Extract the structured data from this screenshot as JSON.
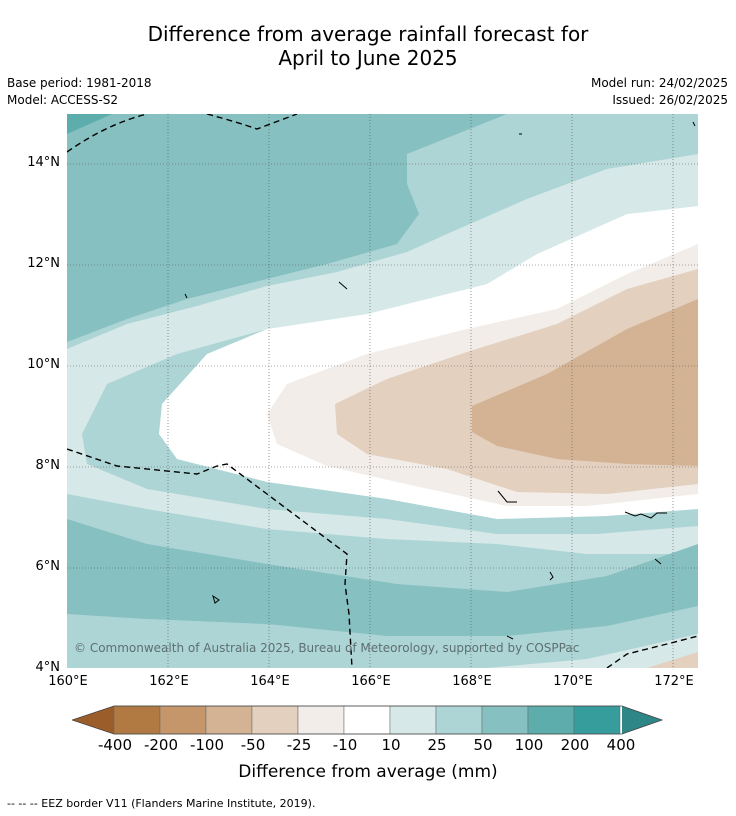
{
  "title": {
    "line1": "Difference from average rainfall forecast for",
    "line2": "April to June 2025"
  },
  "meta": {
    "base_period": "Base period: 1981-2018",
    "model": "Model: ACCESS-S2",
    "model_run": "Model run: 24/02/2025",
    "issued": "Issued: 26/02/2025"
  },
  "map": {
    "lat_labels": [
      "14°N",
      "12°N",
      "10°N",
      "8°N",
      "6°N",
      "4°N"
    ],
    "lon_labels": [
      "160°E",
      "162°E",
      "164°E",
      "166°E",
      "168°E",
      "170°E",
      "172°E"
    ],
    "copyright": "© Commonwealth of Australia 2025, Bureau of Meteorology, supported by COSPPac",
    "extent": {
      "lon": [
        160,
        172.5
      ],
      "lat": [
        4,
        15
      ]
    }
  },
  "colorbar": {
    "labels": [
      "-400",
      "-200",
      "-100",
      "-50",
      "-25",
      "-10",
      "10",
      "25",
      "50",
      "100",
      "200",
      "400"
    ],
    "colors": [
      "#9b5e2a",
      "#b07a42",
      "#c4966a",
      "#d4b394",
      "#e3d0be",
      "#f2ede8",
      "#ffffff",
      "#d6e9e8",
      "#aed5d5",
      "#86c0c0",
      "#5eadad",
      "#369c9c",
      "#2e8686"
    ],
    "title": "Difference from average (mm)"
  },
  "footer": "--  --  -- EEZ border V11 (Flanders Marine Institute, 2019)."
}
